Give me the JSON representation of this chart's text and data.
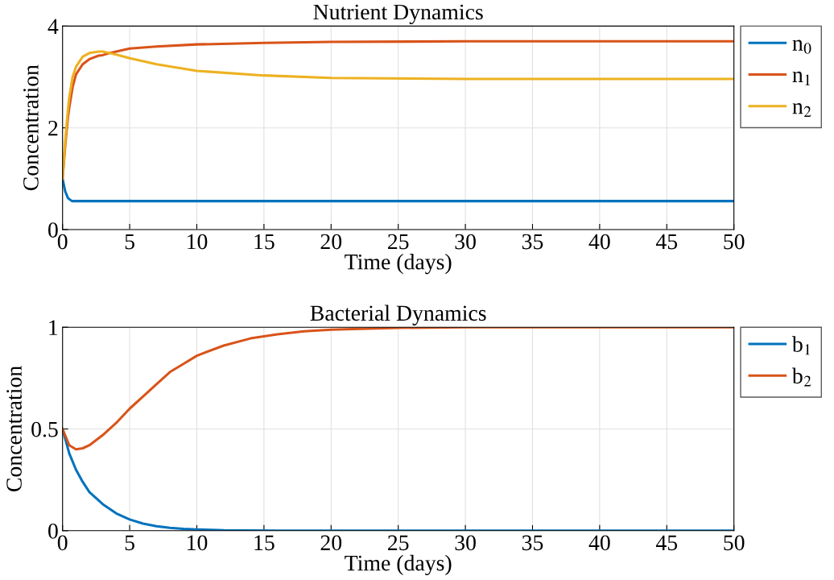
{
  "chart_data": [
    {
      "type": "line",
      "title": "Nutrient Dynamics",
      "xlabel": "Time (days)",
      "ylabel": "Concentration",
      "xlim": [
        0,
        50
      ],
      "xticks": [
        0,
        5,
        10,
        15,
        20,
        25,
        30,
        35,
        40,
        45,
        50
      ],
      "ylim": [
        0,
        4
      ],
      "yticks": [
        0,
        2,
        4
      ],
      "grid": true,
      "legend": "top right",
      "x": [
        0,
        0.2,
        0.25,
        0.4,
        0.5,
        0.7,
        0.75,
        1,
        1.5,
        2,
        2.7,
        3,
        3.5,
        4,
        5,
        7,
        10,
        15,
        20,
        30,
        50
      ],
      "series": [
        {
          "name": "n$_{0}$",
          "color": "#0072bd",
          "values": [
            1,
            0.75,
            0.72,
            0.62,
            0.6,
            0.56,
            0.56,
            0.56,
            0.56,
            0.56,
            0.56,
            0.56,
            0.56,
            0.56,
            0.56,
            0.56,
            0.56,
            0.56,
            0.56,
            0.56,
            0.56
          ]
        },
        {
          "name": "n$_{1}$",
          "color": "#d95319",
          "values": [
            1,
            1.65,
            1.8,
            2.2,
            2.4,
            2.72,
            2.8,
            3.05,
            3.25,
            3.35,
            3.42,
            3.43,
            3.47,
            3.5,
            3.56,
            3.6,
            3.64,
            3.67,
            3.69,
            3.7,
            3.7
          ]
        },
        {
          "name": "n$_{2}$",
          "color": "#edb120",
          "values": [
            1,
            1.75,
            1.9,
            2.35,
            2.6,
            2.92,
            3.0,
            3.2,
            3.4,
            3.47,
            3.5,
            3.5,
            3.47,
            3.44,
            3.37,
            3.25,
            3.12,
            3.03,
            2.98,
            2.96,
            2.96
          ]
        }
      ]
    },
    {
      "type": "line",
      "title": "Bacterial Dynamics",
      "xlabel": "Time (days)",
      "ylabel": "Concentration",
      "xlim": [
        0,
        50
      ],
      "xticks": [
        0,
        5,
        10,
        15,
        20,
        25,
        30,
        35,
        40,
        45,
        50
      ],
      "ylim": [
        0,
        1
      ],
      "yticks": [
        0,
        0.5,
        1
      ],
      "grid": true,
      "legend": "top right",
      "x": [
        0,
        0.5,
        1,
        1.5,
        2,
        3,
        4,
        5,
        6,
        7,
        8,
        9,
        10,
        12,
        14,
        16,
        18,
        20,
        25,
        30,
        50
      ],
      "series": [
        {
          "name": "b$_{1}$",
          "color": "#0072bd",
          "values": [
            0.5,
            0.38,
            0.3,
            0.24,
            0.19,
            0.13,
            0.085,
            0.055,
            0.035,
            0.022,
            0.014,
            0.009,
            0.006,
            0.002,
            0.001,
            0,
            0,
            0,
            0,
            0,
            0
          ]
        },
        {
          "name": "b$_{2}$",
          "color": "#d95319",
          "values": [
            0.5,
            0.42,
            0.4,
            0.405,
            0.42,
            0.47,
            0.53,
            0.6,
            0.66,
            0.72,
            0.78,
            0.82,
            0.86,
            0.91,
            0.945,
            0.965,
            0.98,
            0.988,
            0.997,
            1,
            1
          ]
        }
      ]
    }
  ]
}
